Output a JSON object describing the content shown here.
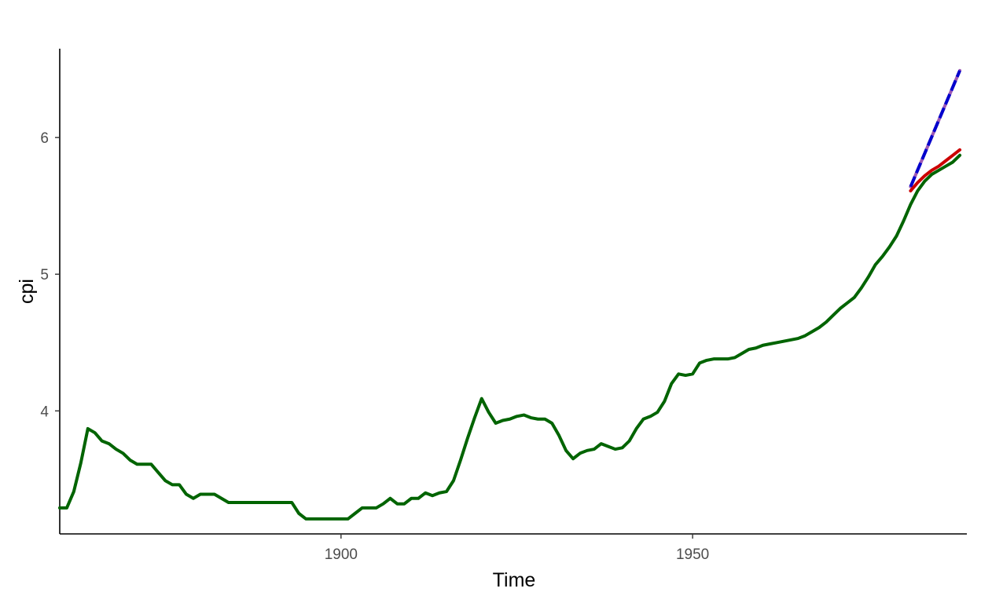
{
  "chart_data": {
    "type": "line",
    "title": "",
    "xlabel": "Time",
    "ylabel": "cpi",
    "xlim": [
      1860,
      1989
    ],
    "ylim": [
      3.1,
      6.65
    ],
    "x_ticks": [
      1900,
      1950
    ],
    "x_tick_labels": [
      "1900",
      "1950"
    ],
    "y_ticks": [
      4,
      5,
      6
    ],
    "y_tick_labels": [
      "4",
      "5",
      "6"
    ],
    "grid": false,
    "legend": "none",
    "series": [
      {
        "color": "#006400",
        "line_style": "solid",
        "x": [
          1860,
          1861,
          1862,
          1863,
          1864,
          1865,
          1866,
          1867,
          1868,
          1869,
          1870,
          1871,
          1872,
          1873,
          1874,
          1875,
          1876,
          1877,
          1878,
          1879,
          1880,
          1881,
          1882,
          1883,
          1884,
          1885,
          1886,
          1887,
          1888,
          1889,
          1890,
          1891,
          1892,
          1893,
          1894,
          1895,
          1896,
          1897,
          1898,
          1899,
          1900,
          1901,
          1902,
          1903,
          1904,
          1905,
          1906,
          1907,
          1908,
          1909,
          1910,
          1911,
          1912,
          1913,
          1914,
          1915,
          1916,
          1917,
          1918,
          1919,
          1920,
          1921,
          1922,
          1923,
          1924,
          1925,
          1926,
          1927,
          1928,
          1929,
          1930,
          1931,
          1932,
          1933,
          1934,
          1935,
          1936,
          1937,
          1938,
          1939,
          1940,
          1941,
          1942,
          1943,
          1944,
          1945,
          1946,
          1947,
          1948,
          1949,
          1950,
          1951,
          1952,
          1953,
          1954,
          1955,
          1956,
          1957,
          1958,
          1959,
          1960,
          1961,
          1962,
          1963,
          1964,
          1965,
          1966,
          1967,
          1968,
          1969,
          1970,
          1971,
          1972,
          1973,
          1974,
          1975,
          1976,
          1977,
          1978,
          1979,
          1980,
          1981,
          1982,
          1983,
          1984,
          1985,
          1986,
          1987,
          1988
        ],
        "values": [
          3.29,
          3.29,
          3.41,
          3.62,
          3.87,
          3.84,
          3.78,
          3.76,
          3.72,
          3.69,
          3.64,
          3.61,
          3.61,
          3.61,
          3.55,
          3.49,
          3.46,
          3.46,
          3.39,
          3.36,
          3.39,
          3.39,
          3.39,
          3.36,
          3.33,
          3.33,
          3.33,
          3.33,
          3.33,
          3.33,
          3.33,
          3.33,
          3.33,
          3.33,
          3.25,
          3.21,
          3.21,
          3.21,
          3.21,
          3.21,
          3.21,
          3.21,
          3.25,
          3.29,
          3.29,
          3.29,
          3.32,
          3.36,
          3.32,
          3.32,
          3.36,
          3.36,
          3.4,
          3.38,
          3.4,
          3.41,
          3.49,
          3.64,
          3.8,
          3.95,
          4.09,
          3.99,
          3.91,
          3.93,
          3.94,
          3.96,
          3.97,
          3.95,
          3.94,
          3.94,
          3.91,
          3.82,
          3.71,
          3.65,
          3.69,
          3.71,
          3.72,
          3.76,
          3.74,
          3.72,
          3.73,
          3.78,
          3.87,
          3.94,
          3.96,
          3.99,
          4.07,
          4.2,
          4.27,
          4.26,
          4.27,
          4.35,
          4.37,
          4.38,
          4.38,
          4.38,
          4.39,
          4.42,
          4.45,
          4.46,
          4.48,
          4.49,
          4.5,
          4.51,
          4.52,
          4.53,
          4.55,
          4.58,
          4.61,
          4.65,
          4.7,
          4.75,
          4.79,
          4.83,
          4.9,
          4.98,
          5.07,
          5.13,
          5.2,
          5.28,
          5.39,
          5.51,
          5.61,
          5.68,
          5.73,
          5.76,
          5.79,
          5.82,
          5.87
        ]
      },
      {
        "color": "#0000cd",
        "line_style": "dashed",
        "x": [
          1981,
          1988
        ],
        "values": [
          5.64,
          6.49
        ]
      },
      {
        "color": "#cc0000",
        "line_style": "solid",
        "x": [
          1981,
          1982,
          1983,
          1984,
          1985,
          1986,
          1987,
          1988
        ],
        "values": [
          5.61,
          5.67,
          5.72,
          5.76,
          5.79,
          5.83,
          5.87,
          5.91
        ]
      }
    ]
  }
}
